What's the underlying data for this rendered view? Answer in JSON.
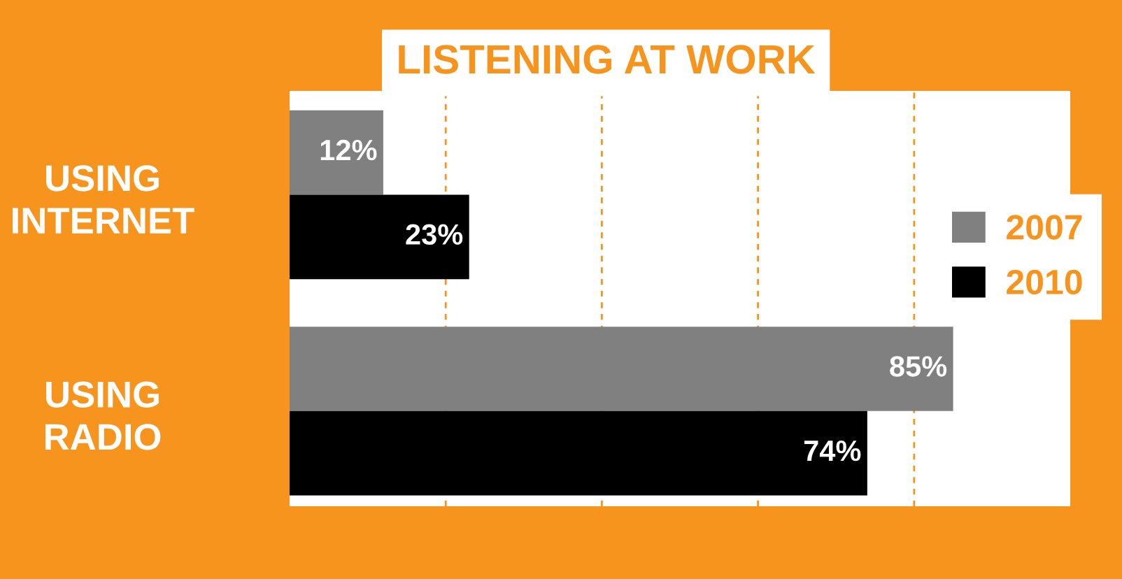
{
  "chart_data": {
    "type": "bar",
    "orientation": "horizontal",
    "title": "LISTENING AT WORK",
    "categories": [
      "USING INTERNET",
      "USING RADIO"
    ],
    "series": [
      {
        "name": "2007",
        "color": "#808080",
        "values": [
          12,
          85
        ],
        "value_labels": [
          "12%",
          "85%"
        ]
      },
      {
        "name": "2010",
        "color": "#000000",
        "values": [
          23,
          74
        ],
        "value_labels": [
          "23%",
          "74%"
        ]
      }
    ],
    "xlim": [
      0,
      100
    ],
    "xticks": [
      {
        "value": 20,
        "label": null
      },
      {
        "value": 40,
        "label": null
      },
      {
        "value": 60,
        "label": null
      },
      {
        "value": 80,
        "label": null
      }
    ],
    "tick_labels": "y",
    "grid": "x",
    "legend": "right"
  }
}
